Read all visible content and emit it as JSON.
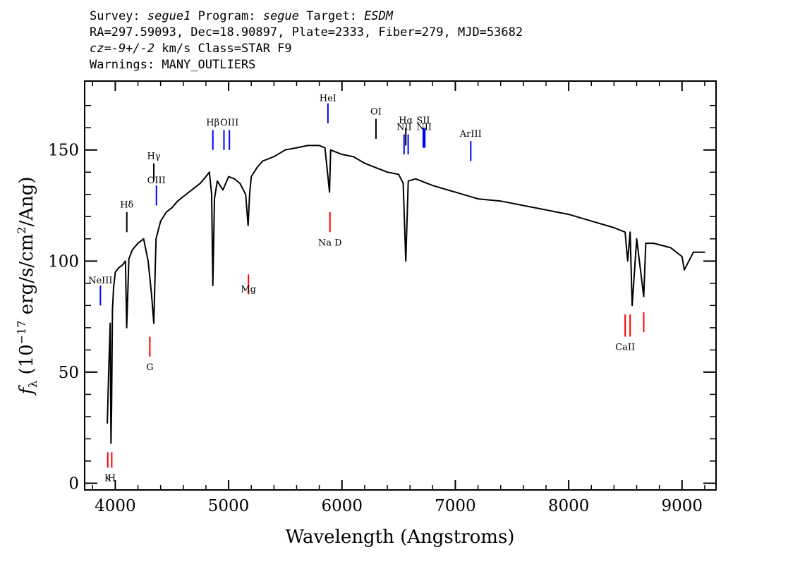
{
  "header": {
    "survey_label": "Survey:",
    "survey": "segue1",
    "program_label": "Program:",
    "program": "segue",
    "target_label": "Target:",
    "target": "ESDM",
    "line2": "RA=297.59093, Dec=18.90897, Plate=2333, Fiber=279, MJD=53682",
    "cz": "cz=-9+/-2",
    "cz_rest": "km/s Class=STAR F9",
    "warnings": "Warnings: MANY_OUTLIERS"
  },
  "chart_data": {
    "type": "line",
    "xlabel": "Wavelength (Angstroms)",
    "ylabel_prefix": "f",
    "ylabel_sub": "λ",
    "ylabel_rest": " (10",
    "ylabel_exp": "−17",
    "ylabel_unit": " erg/s/cm",
    "ylabel_exp2": "2",
    "ylabel_tail": "/Ang)",
    "xlim": [
      3730,
      9300
    ],
    "ylim": [
      -3,
      181
    ],
    "x_ticks": [
      4000,
      5000,
      6000,
      7000,
      8000,
      9000
    ],
    "x_tick_labels": [
      "4000",
      "5000",
      "6000",
      "7000",
      "8000",
      "9000"
    ],
    "y_ticks": [
      0,
      50,
      100,
      150
    ],
    "y_tick_labels": [
      "0",
      "50",
      "100",
      "150"
    ],
    "series": [
      {
        "color": "#000000",
        "x": [
          3930,
          3945,
          3955,
          3962,
          3968,
          3975,
          3985,
          4000,
          4030,
          4060,
          4090,
          4101,
          4120,
          4150,
          4200,
          4250,
          4290,
          4320,
          4340,
          4360,
          4400,
          4450,
          4500,
          4550,
          4600,
          4650,
          4700,
          4750,
          4800,
          4830,
          4850,
          4861,
          4875,
          4900,
          4950,
          5000,
          5050,
          5100,
          5150,
          5172,
          5185,
          5200,
          5250,
          5300,
          5400,
          5500,
          5600,
          5700,
          5800,
          5850,
          5890,
          5900,
          5950,
          6000,
          6100,
          6200,
          6300,
          6400,
          6500,
          6540,
          6563,
          6585,
          6650,
          6800,
          7000,
          7200,
          7400,
          7600,
          7800,
          8000,
          8200,
          8400,
          8498,
          8520,
          8542,
          8560,
          8600,
          8662,
          8680,
          8750,
          8900,
          9000,
          9020,
          9100,
          9200
        ],
        "y": [
          27,
          55,
          72,
          18,
          35,
          78,
          88,
          95,
          97,
          98,
          100,
          70,
          101,
          105,
          108,
          110,
          100,
          85,
          72,
          110,
          118,
          122,
          124,
          127,
          129,
          131,
          133,
          135,
          138,
          140,
          130,
          89,
          128,
          136,
          132,
          138,
          137,
          135,
          130,
          116,
          130,
          138,
          142,
          145,
          147,
          150,
          151,
          152,
          152,
          151,
          131,
          150,
          149,
          148,
          147,
          144,
          142,
          140,
          139,
          135,
          100,
          136,
          137,
          134,
          131,
          128,
          127,
          125,
          123,
          121,
          118,
          115,
          113,
          100,
          113,
          80,
          110,
          84,
          108,
          108,
          106,
          102,
          96,
          104,
          104
        ]
      }
    ],
    "emission_lines": [
      {
        "name": "NeIII",
        "x": 3869,
        "color": "#0000ff",
        "y0": 80,
        "y1": 89,
        "label_y": 90
      },
      {
        "name": "Hδ",
        "x": 4102,
        "color": "#000000",
        "y0": 113,
        "y1": 122,
        "label_y": 124
      },
      {
        "name": "Hγ",
        "x": 4340,
        "color": "#000000",
        "y0": 136,
        "y1": 144,
        "label_y": 146
      },
      {
        "name": "OIII",
        "x": 4363,
        "color": "#0000ff",
        "y0": 125,
        "y1": 134,
        "label_y": 135
      },
      {
        "name": "Hβ",
        "x": 4861,
        "color": "#0000ff",
        "y0": 150,
        "y1": 159,
        "label_y": 161
      },
      {
        "name": "OIII",
        "x": 4959,
        "color": "#0000ff",
        "y0": 150,
        "y1": 159,
        "label_y": null
      },
      {
        "name": "OIII",
        "x": 5007,
        "color": "#0000ff",
        "y0": 150,
        "y1": 159,
        "label_y": 161
      },
      {
        "name": "HeI",
        "x": 5876,
        "color": "#0000ff",
        "y0": 162,
        "y1": 171,
        "label_y": 172
      },
      {
        "name": "OI",
        "x": 6300,
        "color": "#000000",
        "y0": 155,
        "y1": 164,
        "label_y": 166
      },
      {
        "name": "NII",
        "x": 6548,
        "color": "#0000ff",
        "y0": 148,
        "y1": 157,
        "label_y": 159
      },
      {
        "name": "Hα",
        "x": 6563,
        "color": "#000000",
        "y0": 152,
        "y1": 160,
        "label_y": 162
      },
      {
        "name": "NII",
        "x": 6584,
        "color": "#0000ff",
        "y0": 148,
        "y1": 157,
        "label_y": null
      },
      {
        "name": "SII",
        "x": 6717,
        "color": "#0000ff",
        "y0": 151,
        "y1": 160,
        "label_y": 162
      },
      {
        "name": "NII",
        "x": 6725,
        "color": "#0000ff",
        "y0": 151,
        "y1": 159,
        "label_y": 159
      },
      {
        "name": "SII",
        "x": 6731,
        "color": "#0000ff",
        "y0": 151,
        "y1": 160,
        "label_y": null
      },
      {
        "name": "ArIII",
        "x": 7136,
        "color": "#0000ff",
        "y0": 145,
        "y1": 154,
        "label_y": 156
      }
    ],
    "absorption_lines": [
      {
        "name": "K",
        "x": 3934,
        "color": "#ff0000",
        "y0": 7,
        "y1": 14,
        "label_y": 1
      },
      {
        "name": "H",
        "x": 3969,
        "color": "#ff0000",
        "y0": 7,
        "y1": 14,
        "label_y": 1
      },
      {
        "name": "G",
        "x": 4305,
        "color": "#ff0000",
        "y0": 57,
        "y1": 66,
        "label_y": 51
      },
      {
        "name": "Mg",
        "x": 5175,
        "color": "#ff0000",
        "y0": 85,
        "y1": 94,
        "label_y": 86
      },
      {
        "name": "Na D",
        "x": 5894,
        "color": "#ff0000",
        "y0": 113,
        "y1": 122,
        "label_y": 107
      },
      {
        "name": "CaII",
        "x": 8498,
        "color": "#ff0000",
        "y0": 66,
        "y1": 76,
        "label_y": 60
      },
      {
        "name": "CaII",
        "x": 8542,
        "color": "#ff0000",
        "y0": 66,
        "y1": 76,
        "label_y": null
      },
      {
        "name": "CaII",
        "x": 8662,
        "color": "#ff0000",
        "y0": 68,
        "y1": 77,
        "label_y": null
      }
    ]
  }
}
